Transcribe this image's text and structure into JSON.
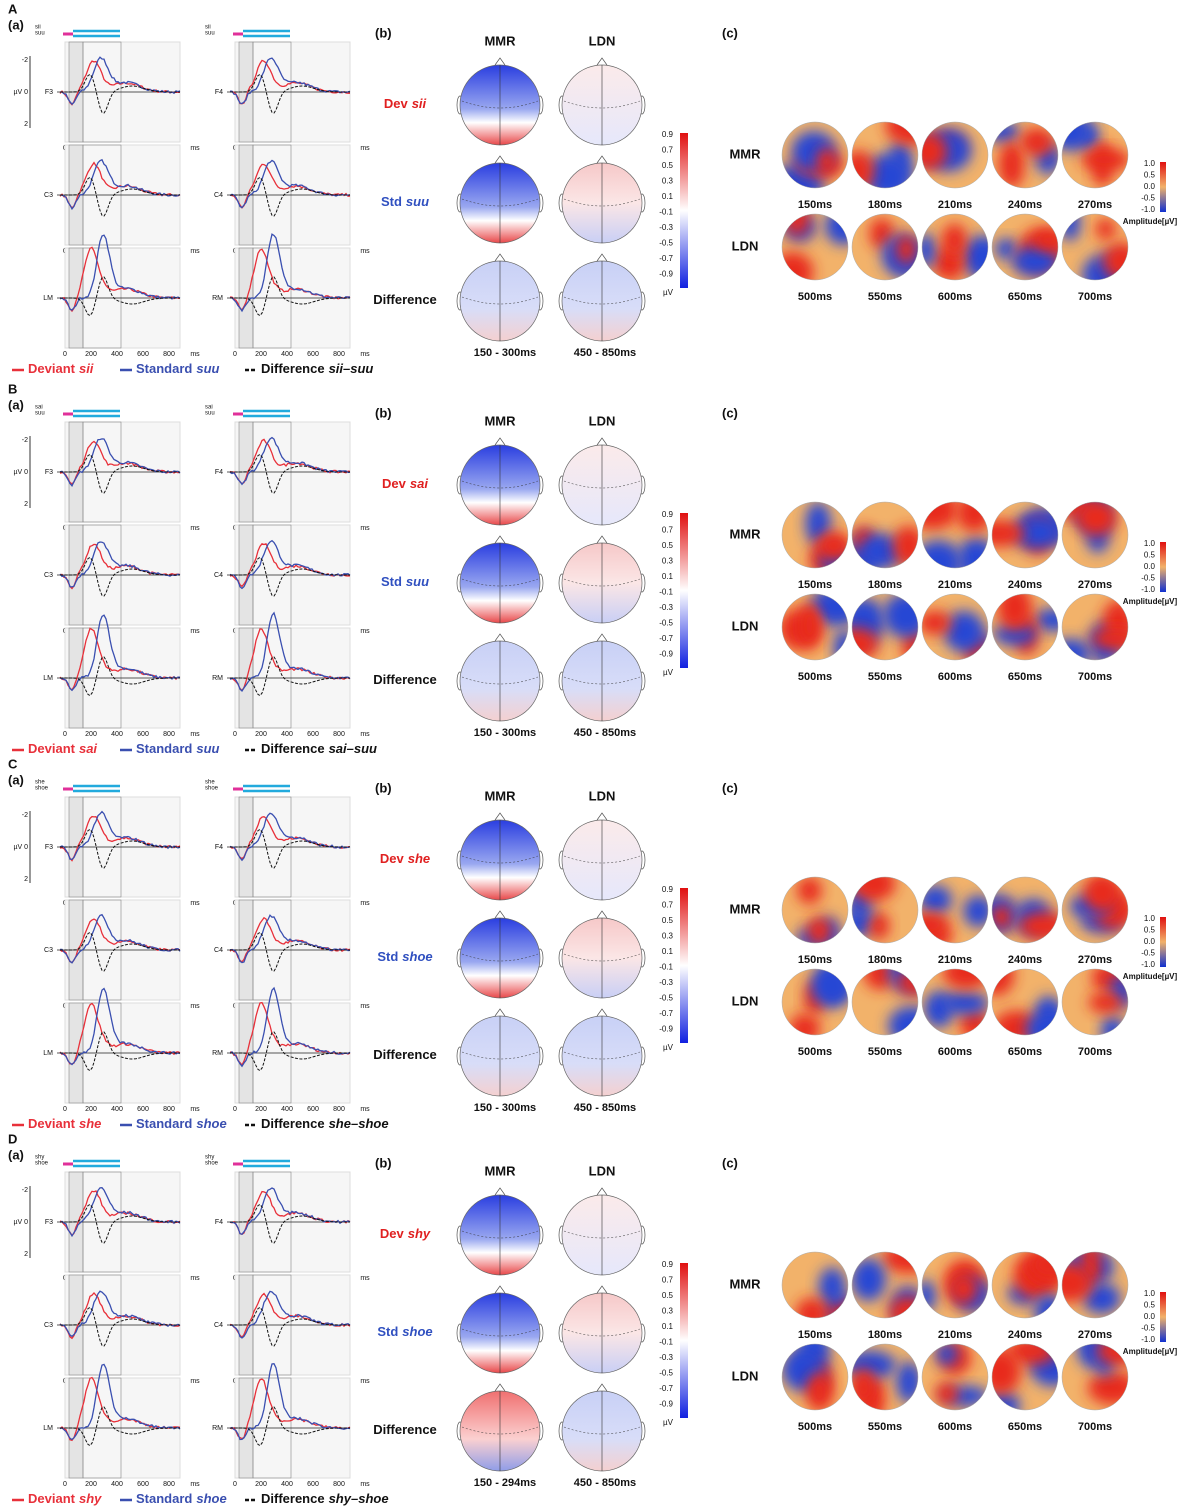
{
  "panels": [
    {
      "letter": "A",
      "sub_a": "(a)",
      "sub_b": "(b)",
      "sub_c": "(c)",
      "stimulus": [
        "sii",
        "suu"
      ],
      "rows": [
        {
          "prefix": "Dev",
          "word": "sii"
        },
        {
          "prefix": "Std",
          "word": "suu"
        },
        {
          "prefix": "Difference"
        }
      ],
      "windows": [
        "150 - 300ms",
        "450 - 850ms"
      ],
      "legend": [
        {
          "label": "Deviant",
          "word": "sii"
        },
        {
          "label": "Standard",
          "word": "suu"
        },
        {
          "label": "Difference",
          "word": "sii–suu"
        }
      ]
    },
    {
      "letter": "B",
      "sub_a": "(a)",
      "sub_b": "(b)",
      "sub_c": "(c)",
      "stimulus": [
        "sai",
        "suu"
      ],
      "rows": [
        {
          "prefix": "Dev",
          "word": "sai"
        },
        {
          "prefix": "Std",
          "word": "suu"
        },
        {
          "prefix": "Difference"
        }
      ],
      "windows": [
        "150 - 300ms",
        "450 - 850ms"
      ],
      "legend": [
        {
          "label": "Deviant",
          "word": "sai"
        },
        {
          "label": "Standard",
          "word": "suu"
        },
        {
          "label": "Difference",
          "word": "sai–suu"
        }
      ]
    },
    {
      "letter": "C",
      "sub_a": "(a)",
      "sub_b": "(b)",
      "sub_c": "(c)",
      "stimulus": [
        "she",
        "shoe"
      ],
      "rows": [
        {
          "prefix": "Dev",
          "word": "she"
        },
        {
          "prefix": "Std",
          "word": "shoe"
        },
        {
          "prefix": "Difference"
        }
      ],
      "windows": [
        "150 - 300ms",
        "450 - 850ms"
      ],
      "legend": [
        {
          "label": "Deviant",
          "word": "she"
        },
        {
          "label": "Standard",
          "word": "shoe"
        },
        {
          "label": "Difference",
          "word": "she–shoe"
        }
      ]
    },
    {
      "letter": "D",
      "sub_a": "(a)",
      "sub_b": "(b)",
      "sub_c": "(c)",
      "stimulus": [
        "shy",
        "shoe"
      ],
      "rows": [
        {
          "prefix": "Dev",
          "word": "shy"
        },
        {
          "prefix": "Std",
          "word": "shoe"
        },
        {
          "prefix": "Difference"
        }
      ],
      "windows": [
        "150 - 294ms",
        "450 - 850ms"
      ],
      "legend": [
        {
          "label": "Deviant",
          "word": "shy"
        },
        {
          "label": "Standard",
          "word": "shoe"
        },
        {
          "label": "Difference",
          "word": "shy–shoe"
        }
      ]
    }
  ],
  "erp": {
    "y_ticks": [
      "-2",
      "µV 0",
      "2"
    ],
    "x_ticks": [
      "0",
      "200",
      "400",
      "600",
      "800",
      "ms"
    ],
    "electrodes": [
      [
        "F3",
        "F4"
      ],
      [
        "C3",
        "C4"
      ],
      [
        "LM",
        "RM"
      ]
    ]
  },
  "topo_columns": [
    "MMR",
    "LDN"
  ],
  "maps": {
    "rows": [
      "MMR",
      "LDN"
    ],
    "times": [
      [
        "150ms",
        "180ms",
        "210ms",
        "240ms",
        "270ms"
      ],
      [
        "500ms",
        "550ms",
        "600ms",
        "650ms",
        "700ms"
      ]
    ]
  },
  "colorbar_b": {
    "ticks": [
      "0.9",
      "0.7",
      "0.5",
      "0.3",
      "0.1",
      "-0.1",
      "-0.3",
      "-0.5",
      "-0.7",
      "-0.9"
    ],
    "unit": "µV"
  },
  "colorbar_c": {
    "ticks": [
      "1.0",
      "0.5",
      "0.0",
      "-0.5",
      "-1.0"
    ],
    "unit": "Amplitude[µV]"
  }
}
